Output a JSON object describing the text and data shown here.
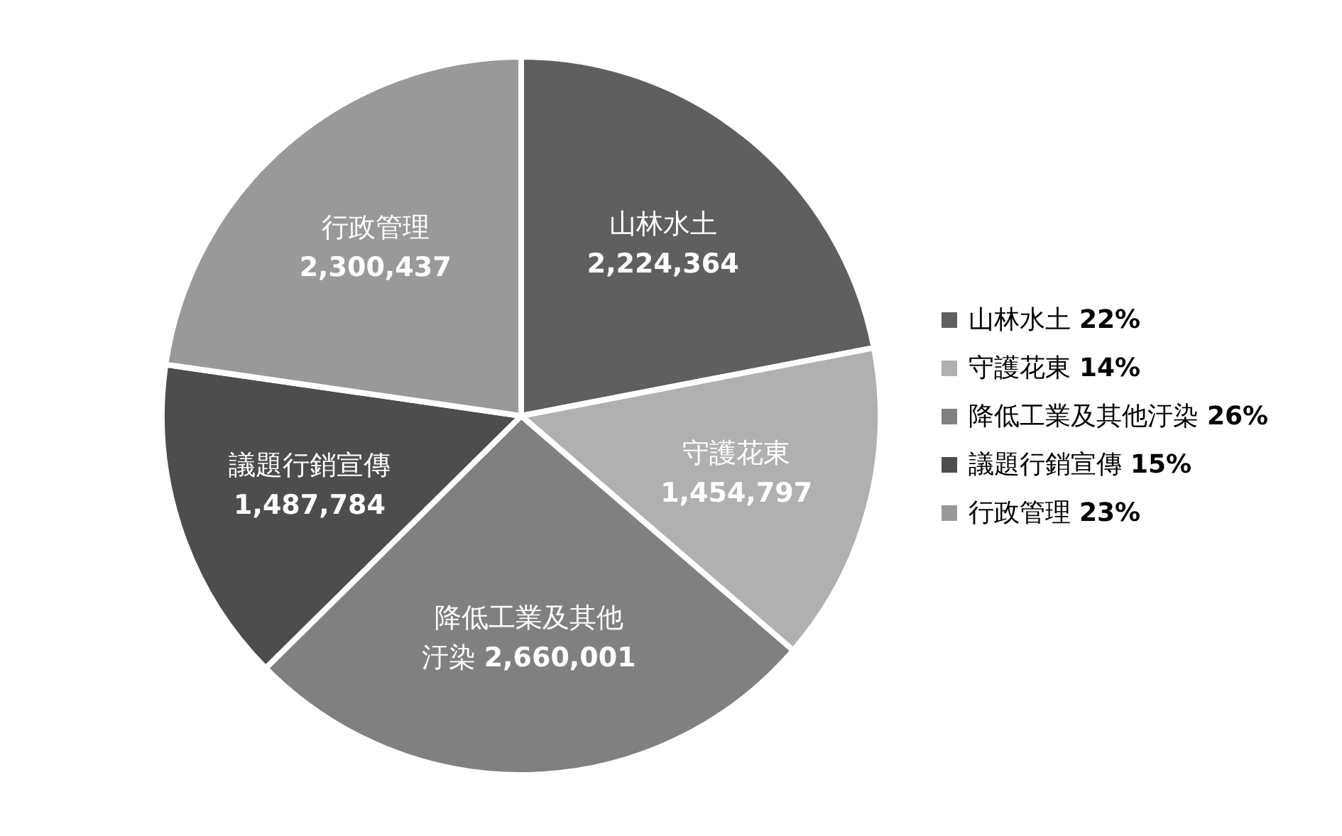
{
  "chart_data": {
    "type": "pie",
    "categories": [
      "山林水土",
      "守護花東",
      "降低工業及其他汙染",
      "議題行銷宣傳",
      "行政管理"
    ],
    "values": [
      2224364,
      1454797,
      2660001,
      1487784,
      2300437
    ],
    "value_labels": [
      "2,224,364",
      "1,454,797",
      "2,660,001",
      "1,487,784",
      "2,300,437"
    ],
    "colors": [
      "#5f5f5f",
      "#b0b0b0",
      "#808080",
      "#4d4d4d",
      "#999999"
    ],
    "annotations": [
      "22%",
      "14%",
      "26%",
      "15%",
      "23%"
    ],
    "legend": "right"
  }
}
